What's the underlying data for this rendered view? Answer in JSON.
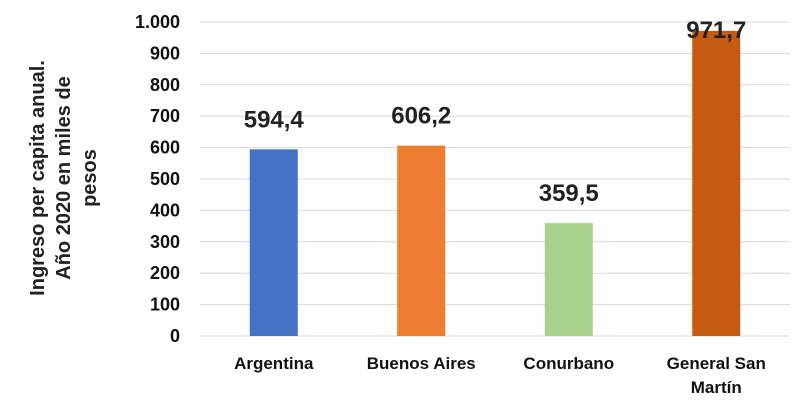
{
  "chart_data": {
    "type": "bar",
    "title": "",
    "xlabel": "",
    "ylabel_lines": [
      "Ingreso per capita anual.",
      "Año 2020 en miles de",
      "pesos"
    ],
    "ylim": [
      0,
      1000
    ],
    "y_ticks": [
      0,
      100,
      200,
      300,
      400,
      500,
      600,
      700,
      800,
      900,
      1000
    ],
    "y_tick_labels": [
      "0",
      "100",
      "200",
      "300",
      "400",
      "500",
      "600",
      "700",
      "800",
      "900",
      "1.000"
    ],
    "grid": true,
    "legend": "none",
    "categories": [
      [
        "Argentina"
      ],
      [
        "Buenos Aires"
      ],
      [
        "Conurbano"
      ],
      [
        "General San",
        "Martín"
      ]
    ],
    "values": [
      594.4,
      606.2,
      359.5,
      971.7
    ],
    "data_labels": [
      "594,4",
      "606,2",
      "359,5",
      "971,7"
    ],
    "colors": [
      "#4472c4",
      "#ed7d31",
      "#a9d18e",
      "#c55a11"
    ]
  }
}
